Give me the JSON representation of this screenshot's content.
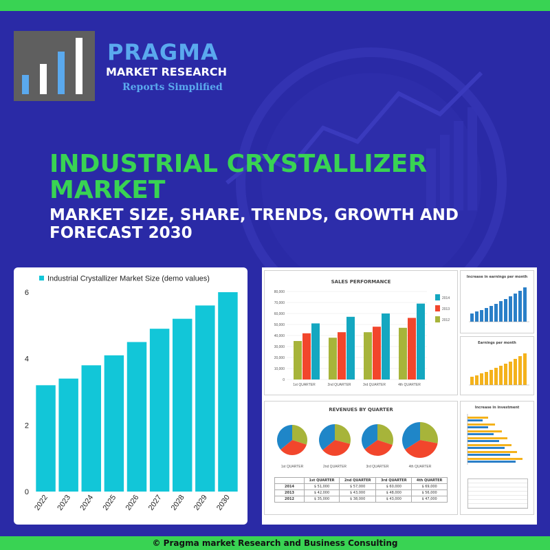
{
  "brand": {
    "name": "PRAGMA",
    "line2": "MARKET RESEARCH",
    "tagline": "Reports Simplified"
  },
  "headline": {
    "title": "INDUSTRIAL CRYSTALLIZER MARKET",
    "subtitle": "MARKET SIZE, SHARE, TRENDS, GROWTH AND FORECAST 2030"
  },
  "footer": {
    "copyright": "© Pragma market Research and Business Consulting"
  },
  "colors": {
    "background": "#2a2aa6",
    "accent_green": "#39d353",
    "accent_blue": "#5aa9ee",
    "bar_cyan": "#12c6d8",
    "logo_gray": "#5f5f5f"
  },
  "chart_data": {
    "type": "bar",
    "legend": "Industrial Crystallizer Market Size (demo values)",
    "categories": [
      "2022",
      "2023",
      "2024",
      "2025",
      "2026",
      "2027",
      "2028",
      "2029",
      "2030"
    ],
    "values": [
      3.2,
      3.4,
      3.8,
      4.1,
      4.5,
      4.9,
      5.2,
      5.6,
      6.0
    ],
    "ylim": [
      0,
      6
    ],
    "yticks": [
      0,
      2,
      4,
      6
    ],
    "grid": false,
    "legend_position": "top"
  },
  "dashboard": {
    "sales_title": "SALES PERFORMANCE",
    "sales_yticks": [
      "80,000",
      "70,000",
      "60,000",
      "50,000",
      "40,000",
      "30,000",
      "20,000",
      "10,000",
      "0"
    ],
    "sales_quarters": [
      "1st QUARTER",
      "2nd QUARTER",
      "3rd QUARTER",
      "4th QUARTER"
    ],
    "sales_legend": [
      "2014",
      "2013",
      "2012"
    ],
    "sales_values": {
      "2012": [
        35000,
        38000,
        43000,
        47000
      ],
      "2013": [
        42000,
        43000,
        48000,
        56000
      ],
      "2014": [
        51000,
        57000,
        60000,
        69000
      ]
    },
    "earnings_title": "Increase in earnings per month",
    "eps_title": "Earnings per month",
    "investment_title": "Increase in investment",
    "revenue_title": "REVENUES BY QUARTER",
    "revenue_quarters": [
      "1st QUARTER",
      "2nd QUARTER",
      "3rd QUARTER",
      "4th QUARTER"
    ],
    "revenue_table": {
      "headers": [
        "1st QUARTER",
        "2nd QUARTER",
        "3rd QUARTER",
        "4th QUARTER"
      ],
      "rows": [
        {
          "year": "2014",
          "cells": [
            "$ 51,000",
            "$ 57,000",
            "$ 60,000",
            "$ 69,000"
          ]
        },
        {
          "year": "2013",
          "cells": [
            "$ 42,000",
            "$ 43,000",
            "$ 48,000",
            "$ 56,000"
          ]
        },
        {
          "year": "2012",
          "cells": [
            "$ 35,000",
            "$ 38,000",
            "$ 43,000",
            "$ 47,000"
          ]
        }
      ]
    }
  }
}
